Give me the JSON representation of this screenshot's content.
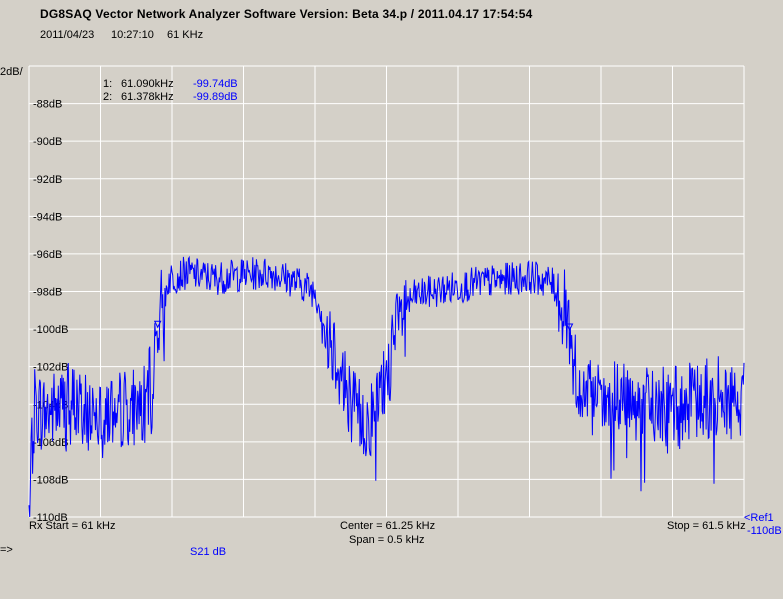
{
  "header": {
    "title": "DG8SAQ Vector Network Analyzer Software    Version:  Beta 34.p / 2011.04.17 17:54:54",
    "date": "2011/04/23",
    "time": "10:27:10",
    "freq_label": "61 KHz"
  },
  "scale": {
    "per_div": "2dB/",
    "ref_label": "<Ref1",
    "ref_value": "-110dB"
  },
  "markers": [
    {
      "id": "1:",
      "freq": "61.090kHz",
      "value": "-99.74dB"
    },
    {
      "id": "2:",
      "freq": "61.378kHz",
      "value": "-99.89dB"
    }
  ],
  "footer": {
    "start": "Rx Start = 61 kHz",
    "center": "Center = 61.25 kHz",
    "span": "Span = 0.5 kHz",
    "stop": "Stop = 61.5 kHz",
    "prompt": "=>",
    "trace": "S21  dB"
  },
  "colors": {
    "trace": "#0000ff",
    "grid": "#ffffff",
    "background": "#d4d0c8"
  },
  "chart_data": {
    "type": "line",
    "xlabel": "",
    "ylabel": "",
    "xlim": [
      61.0,
      61.5
    ],
    "ylim": [
      -110,
      -86
    ],
    "y_ticks": [
      "-88dB",
      "-90dB",
      "-92dB",
      "-94dB",
      "-96dB",
      "-98dB",
      "-100dB",
      "-102dB",
      "-104dB",
      "-106dB",
      "-108dB",
      "-110dB"
    ],
    "series": [
      {
        "name": "S21  dB",
        "points": [
          [
            61.0,
            -109.8
          ],
          [
            61.004,
            -104.0
          ],
          [
            61.01,
            -104.5
          ],
          [
            61.02,
            -104.2
          ],
          [
            61.03,
            -103.8
          ],
          [
            61.04,
            -104.6
          ],
          [
            61.05,
            -103.9
          ],
          [
            61.06,
            -104.5
          ],
          [
            61.07,
            -104.0
          ],
          [
            61.08,
            -104.2
          ],
          [
            61.085,
            -103.0
          ],
          [
            61.09,
            -99.74
          ],
          [
            61.093,
            -98.7
          ],
          [
            61.098,
            -97.3
          ],
          [
            61.11,
            -97.0
          ],
          [
            61.13,
            -97.3
          ],
          [
            61.15,
            -97.1
          ],
          [
            61.17,
            -97.0
          ],
          [
            61.19,
            -97.6
          ],
          [
            61.2,
            -98.0
          ],
          [
            61.208,
            -99.8
          ],
          [
            61.215,
            -101.3
          ],
          [
            61.22,
            -102.8
          ],
          [
            61.228,
            -104.3
          ],
          [
            61.235,
            -105.0
          ],
          [
            61.242,
            -104.5
          ],
          [
            61.25,
            -102.5
          ],
          [
            61.256,
            -100.5
          ],
          [
            61.262,
            -99.0
          ],
          [
            61.27,
            -98.2
          ],
          [
            61.29,
            -97.9
          ],
          [
            61.31,
            -97.6
          ],
          [
            61.33,
            -97.4
          ],
          [
            61.35,
            -97.2
          ],
          [
            61.365,
            -97.5
          ],
          [
            61.372,
            -98.4
          ],
          [
            61.378,
            -99.89
          ],
          [
            61.382,
            -102.0
          ],
          [
            61.386,
            -103.7
          ],
          [
            61.4,
            -104.0
          ],
          [
            61.42,
            -103.8
          ],
          [
            61.44,
            -104.2
          ],
          [
            61.46,
            -104.0
          ],
          [
            61.48,
            -103.6
          ],
          [
            61.5,
            -104.0
          ]
        ]
      }
    ]
  }
}
